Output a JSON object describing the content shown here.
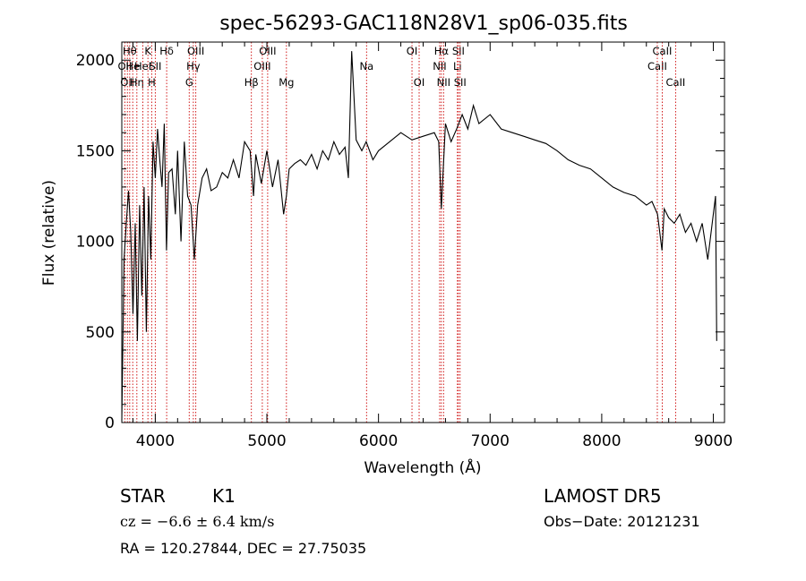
{
  "title": "spec-56293-GAC118N28V1_sp06-035.fits",
  "info": {
    "class": "STAR",
    "subclass": "K1",
    "cz": "cz = −6.6 ± 6.4 km/s",
    "radec": "RA = 120.27844, DEC =  27.75035",
    "survey": "LAMOST  DR5",
    "obsdate": "Obs−Date: 20121231"
  },
  "chart_data": {
    "type": "line",
    "title": "spec-56293-GAC118N28V1_sp06-035.fits",
    "xlabel": "Wavelength (Å)",
    "ylabel": "Flux (relative)",
    "xlim": [
      3700,
      9100
    ],
    "ylim": [
      0,
      2100
    ],
    "xticks": [
      "4000",
      "5000",
      "6000",
      "7000",
      "8000",
      "9000"
    ],
    "yticks": [
      "0",
      "500",
      "1000",
      "1500",
      "2000"
    ],
    "line_color": "#000000",
    "marker_color": "#cc0000",
    "series": [
      {
        "x": [
          3700,
          3720,
          3740,
          3760,
          3780,
          3800,
          3820,
          3840,
          3860,
          3880,
          3900,
          3920,
          3940,
          3960,
          3980,
          4000,
          4020,
          4040,
          4060,
          4080,
          4100,
          4120,
          4150,
          4180,
          4200,
          4230,
          4260,
          4290,
          4320,
          4350,
          4380,
          4420,
          4460,
          4500,
          4550,
          4600,
          4650,
          4700,
          4750,
          4800,
          4850,
          4880,
          4900,
          4950,
          5000,
          5050,
          5100,
          5150,
          5175,
          5200,
          5250,
          5300,
          5350,
          5400,
          5450,
          5500,
          5550,
          5600,
          5650,
          5700,
          5730,
          5760,
          5800,
          5850,
          5890,
          5950,
          6000,
          6100,
          6200,
          6300,
          6400,
          6500,
          6540,
          6563,
          6600,
          6650,
          6700,
          6750,
          6800,
          6850,
          6900,
          7000,
          7100,
          7200,
          7300,
          7400,
          7500,
          7600,
          7700,
          7800,
          7900,
          8000,
          8100,
          8200,
          8300,
          8400,
          8450,
          8500,
          8540,
          8560,
          8600,
          8650,
          8700,
          8750,
          8800,
          8850,
          8900,
          8950,
          9000,
          9020,
          9030
        ],
        "y": [
          10,
          900,
          1100,
          1280,
          1050,
          600,
          1100,
          450,
          1200,
          700,
          1300,
          500,
          1250,
          900,
          1550,
          1350,
          1620,
          1450,
          1300,
          1650,
          950,
          1380,
          1400,
          1150,
          1500,
          1000,
          1550,
          1250,
          1200,
          900,
          1200,
          1350,
          1400,
          1280,
          1300,
          1380,
          1350,
          1450,
          1350,
          1550,
          1500,
          1250,
          1480,
          1320,
          1500,
          1300,
          1450,
          1150,
          1250,
          1400,
          1430,
          1450,
          1420,
          1480,
          1400,
          1500,
          1450,
          1550,
          1480,
          1520,
          1350,
          2050,
          1560,
          1500,
          1550,
          1450,
          1500,
          1550,
          1600,
          1560,
          1580,
          1600,
          1550,
          1180,
          1650,
          1550,
          1620,
          1700,
          1620,
          1750,
          1650,
          1700,
          1620,
          1600,
          1580,
          1560,
          1540,
          1500,
          1450,
          1420,
          1400,
          1350,
          1300,
          1270,
          1250,
          1200,
          1220,
          1150,
          950,
          1180,
          1130,
          1100,
          1150,
          1050,
          1100,
          1000,
          1100,
          900,
          1150,
          1250,
          450
        ]
      }
    ],
    "lines": [
      {
        "wl": 3727,
        "label": "OII",
        "row": 1
      },
      {
        "wl": 3750,
        "label": "OII",
        "row": 2
      },
      {
        "wl": 3771,
        "label": "Hθ",
        "row": 0
      },
      {
        "wl": 3798,
        "label": "He",
        "row": 1
      },
      {
        "wl": 3835,
        "label": "Hη",
        "row": 2
      },
      {
        "wl": 3889,
        "label": "HeI",
        "row": 1
      },
      {
        "wl": 3934,
        "label": "K",
        "row": 0
      },
      {
        "wl": 3968,
        "label": "H",
        "row": 2
      },
      {
        "wl": 4000,
        "label": "SII",
        "row": 1
      },
      {
        "wl": 4102,
        "label": "Hδ",
        "row": 0
      },
      {
        "wl": 4304,
        "label": "G",
        "row": 2
      },
      {
        "wl": 4341,
        "label": "Hγ",
        "row": 1
      },
      {
        "wl": 4363,
        "label": "OIII",
        "row": 0
      },
      {
        "wl": 4861,
        "label": "Hβ",
        "row": 2
      },
      {
        "wl": 4959,
        "label": "OIII",
        "row": 1
      },
      {
        "wl": 5007,
        "label": "OIII",
        "row": 0
      },
      {
        "wl": 5175,
        "label": "Mg",
        "row": 2
      },
      {
        "wl": 5893,
        "label": "Na",
        "row": 1
      },
      {
        "wl": 6300,
        "label": "OI",
        "row": 0
      },
      {
        "wl": 6364,
        "label": "OI",
        "row": 2
      },
      {
        "wl": 6548,
        "label": "NII",
        "row": 1
      },
      {
        "wl": 6563,
        "label": "Hα",
        "row": 0
      },
      {
        "wl": 6583,
        "label": "NII",
        "row": 2
      },
      {
        "wl": 6707,
        "label": "Li",
        "row": 1
      },
      {
        "wl": 6716,
        "label": "SII",
        "row": 0
      },
      {
        "wl": 6731,
        "label": "SII",
        "row": 2
      },
      {
        "wl": 8498,
        "label": "CaII",
        "row": 1
      },
      {
        "wl": 8542,
        "label": "CaII",
        "row": 0
      },
      {
        "wl": 8662,
        "label": "CaII",
        "row": 2
      }
    ]
  }
}
